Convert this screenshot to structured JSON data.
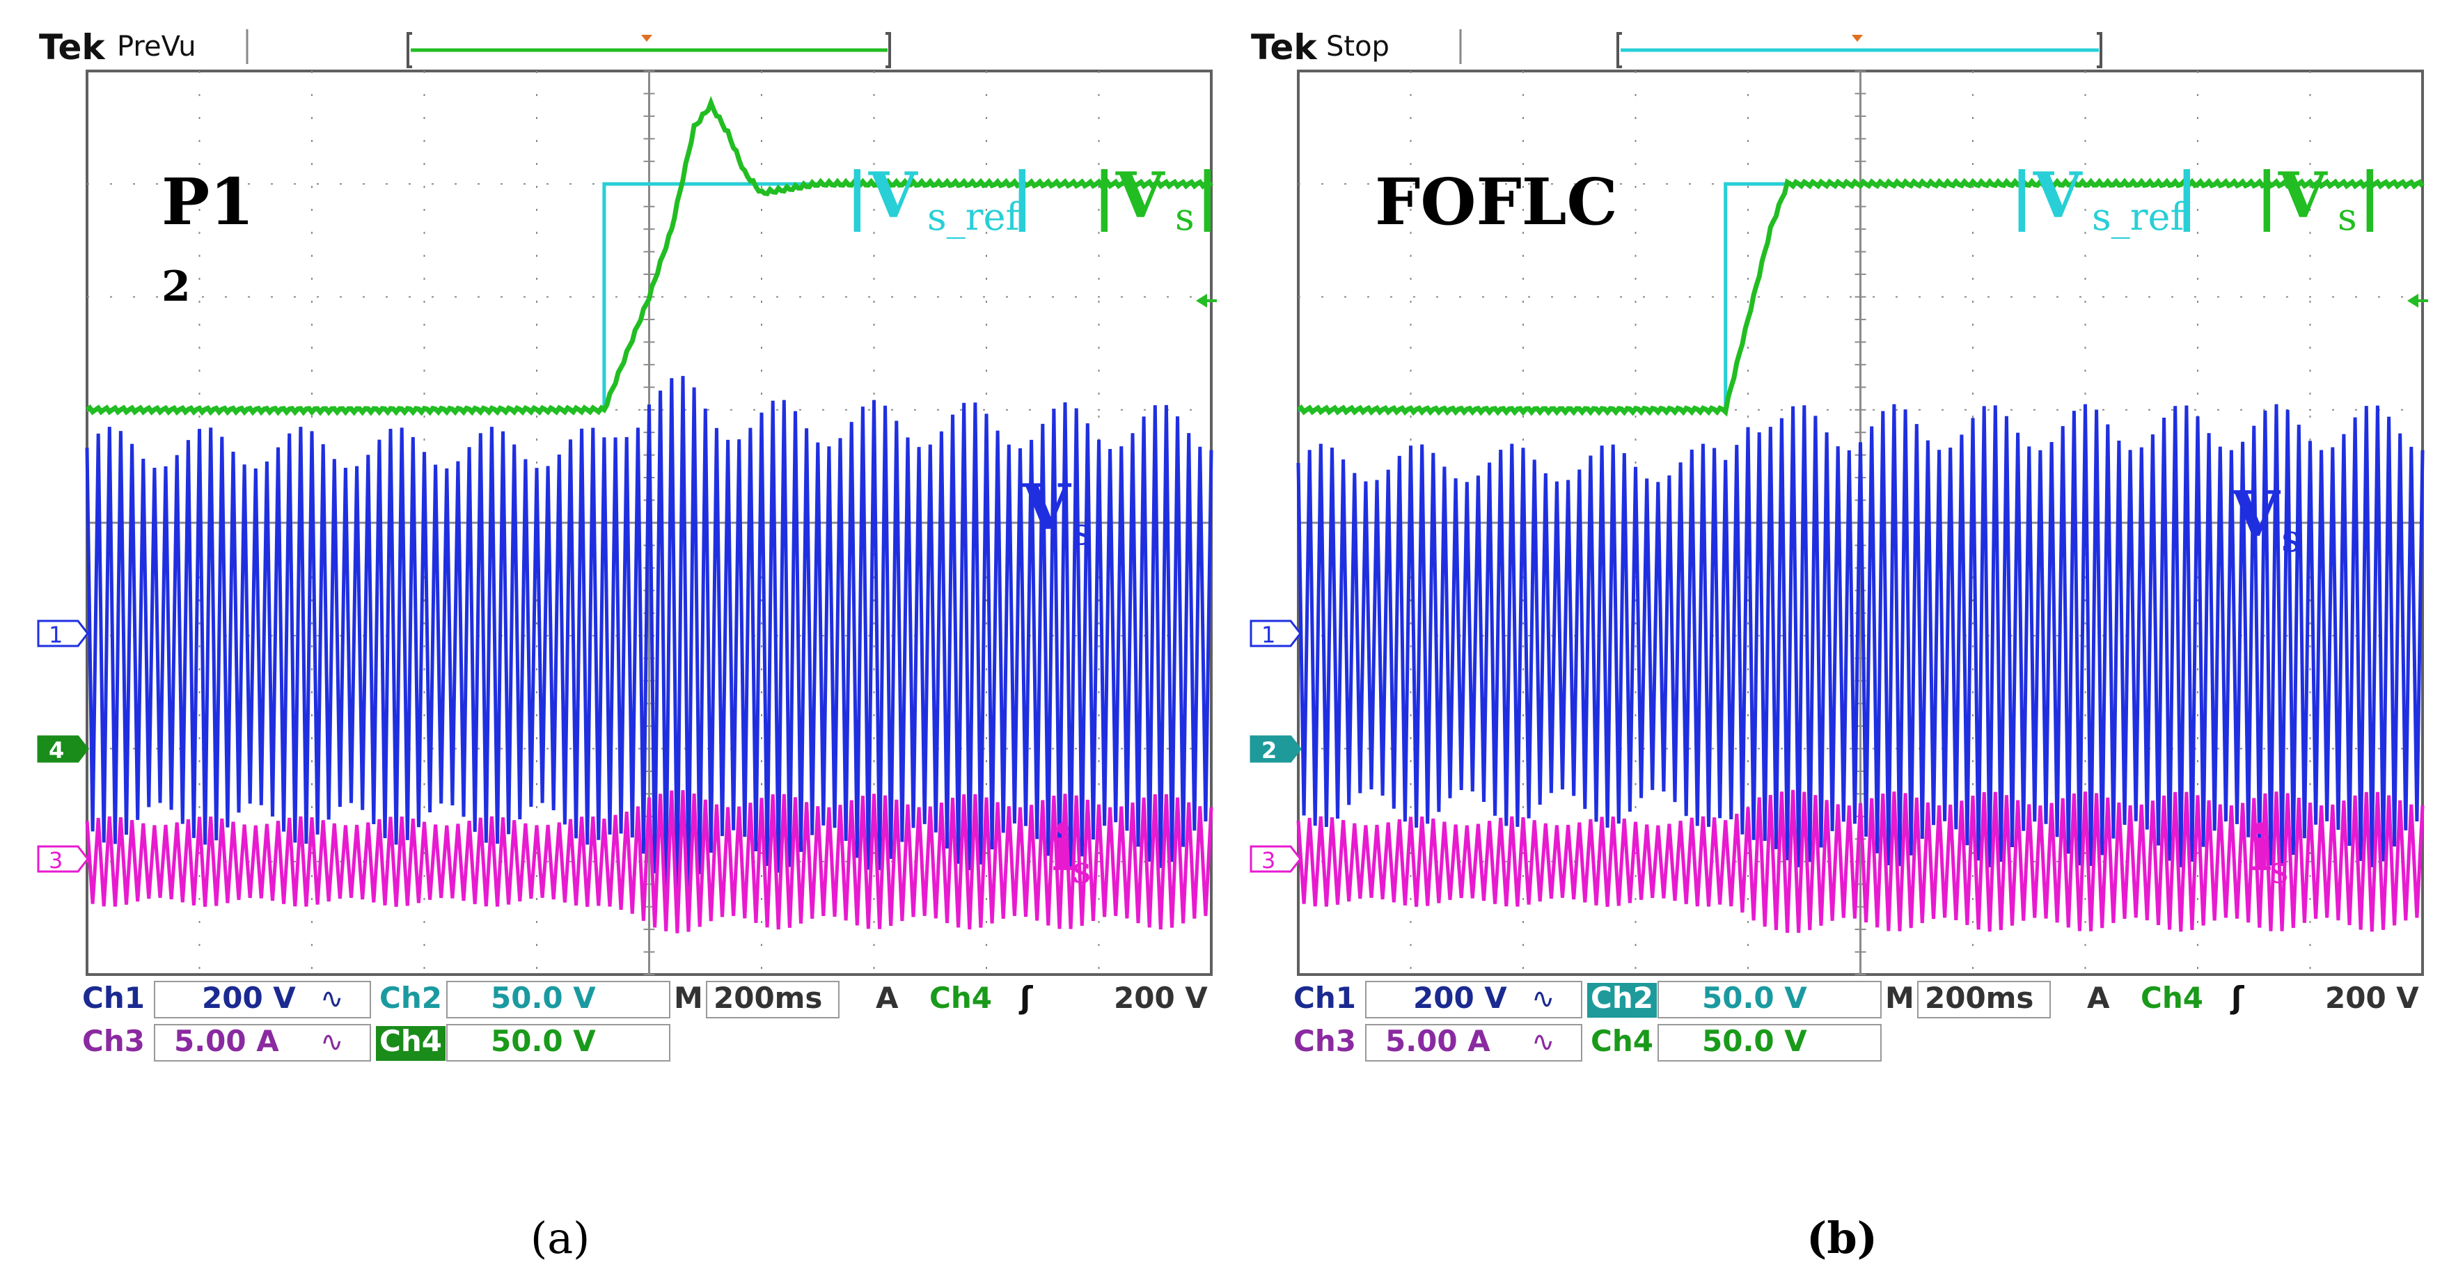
{
  "figure": {
    "caption_a": "(a)",
    "caption_b": "(b)"
  },
  "colors": {
    "ch1": "#1f2fe0",
    "ch2": "#28cfd6",
    "ch3": "#e81ad0",
    "ch4": "#22bd22",
    "ch4_dark": "#1a8c1a",
    "ch2_dark": "#1e9a9a",
    "grid": "#8a8a8a",
    "frame": "#606060",
    "marker": "#e07020",
    "text_blue": "#1a2a90",
    "text_purple": "#8a2aa0",
    "text_green": "#1a9a1a",
    "text_teal": "#1a9aa0"
  },
  "chart_data": [
    {
      "type": "line",
      "panel": "a",
      "brand": "Tek",
      "status": "PreVu",
      "controller_label": "P1",
      "controller_label_sub": "2",
      "channel_markers": [
        "1",
        "4",
        "3"
      ],
      "trace_labels": {
        "vs_ref": "|Vs_ref|",
        "vs_mag": "|Vs|",
        "vs": "Vs",
        "is": "is"
      },
      "xlim": [
        0,
        10
      ],
      "ylim": [
        0,
        8
      ],
      "step_time": 4.6,
      "series": [
        {
          "name": "|Vs_ref|",
          "channel": "Ch2",
          "x": [
            0,
            4.6,
            4.6,
            10
          ],
          "y": [
            5.0,
            5.0,
            7.0,
            7.0
          ]
        },
        {
          "name": "|Vs|",
          "channel": "Ch4",
          "x": [
            0,
            4.6,
            5.0,
            5.2,
            5.4,
            5.55,
            5.7,
            5.85,
            6.0,
            6.2,
            6.5,
            7.0,
            10
          ],
          "y": [
            5.0,
            5.0,
            6.0,
            6.6,
            7.5,
            7.7,
            7.45,
            7.1,
            6.92,
            6.95,
            7.0,
            7.0,
            7.0
          ]
        },
        {
          "name": "Vs",
          "channel": "Ch1",
          "x": [
            0,
            4.6,
            5.0,
            5.5,
            6.0,
            10
          ],
          "amplitude": [
            1.85,
            1.85,
            2.45,
            2.2,
            2.1,
            2.05
          ],
          "offset": 3.0,
          "cycles": 100
        },
        {
          "name": "is",
          "channel": "Ch3",
          "x": [
            0,
            4.6,
            5.0,
            5.5,
            10
          ],
          "amplitude": [
            0.4,
            0.4,
            0.68,
            0.6,
            0.6
          ],
          "offset": 1.0,
          "cycles": 100
        }
      ],
      "readouts": {
        "ch1_name": "Ch1",
        "ch1_scale": "200 V",
        "ch1_coupling": "∿",
        "ch2_name": "Ch2",
        "ch2_scale": "50.0 V",
        "ch3_name": "Ch3",
        "ch3_scale": "5.00 A",
        "ch3_coupling": "∿",
        "ch4_name": "Ch4",
        "ch4_scale": "50.0 V",
        "time_label": "M",
        "timebase": "200ms",
        "trigger_label": "A",
        "trigger_source": "Ch4",
        "trigger_slope": "ʃ",
        "trigger_level": "200 V"
      }
    },
    {
      "type": "line",
      "panel": "b",
      "brand": "Tek",
      "status": "Stop",
      "controller_label": "FOFLC",
      "channel_markers": [
        "1",
        "2",
        "3"
      ],
      "trace_labels": {
        "vs_ref": "|Vs_ref|",
        "vs_mag": "|Vs|",
        "vs": "Vs",
        "is": "is"
      },
      "xlim": [
        0,
        10
      ],
      "ylim": [
        0,
        8
      ],
      "step_time": 3.8,
      "series": [
        {
          "name": "|Vs_ref|",
          "channel": "Ch2",
          "x": [
            0,
            3.8,
            3.8,
            10
          ],
          "y": [
            5.0,
            5.0,
            7.0,
            7.0
          ]
        },
        {
          "name": "|Vs|",
          "channel": "Ch4",
          "x": [
            0,
            3.8,
            4.0,
            4.2,
            4.35,
            10
          ],
          "y": [
            5.0,
            5.0,
            5.8,
            6.6,
            7.0,
            7.0
          ]
        },
        {
          "name": "Vs",
          "channel": "Ch1",
          "x": [
            0,
            3.8,
            4.0,
            4.3,
            10
          ],
          "amplitude": [
            1.7,
            1.7,
            2.3,
            2.05,
            2.05
          ],
          "offset": 3.0,
          "cycles": 100
        },
        {
          "name": "is",
          "channel": "Ch3",
          "x": [
            0,
            3.8,
            4.1,
            4.5,
            10
          ],
          "amplitude": [
            0.4,
            0.4,
            0.7,
            0.62,
            0.62
          ],
          "offset": 1.0,
          "cycles": 100
        }
      ],
      "readouts": {
        "ch1_name": "Ch1",
        "ch1_scale": "200 V",
        "ch1_coupling": "∿",
        "ch2_name": "Ch2",
        "ch2_scale": "50.0 V",
        "ch3_name": "Ch3",
        "ch3_scale": "5.00 A",
        "ch3_coupling": "∿",
        "ch4_name": "Ch4",
        "ch4_scale": "50.0 V",
        "time_label": "M",
        "timebase": "200ms",
        "trigger_label": "A",
        "trigger_source": "Ch4",
        "trigger_slope": "ʃ",
        "trigger_level": "200 V"
      }
    }
  ]
}
